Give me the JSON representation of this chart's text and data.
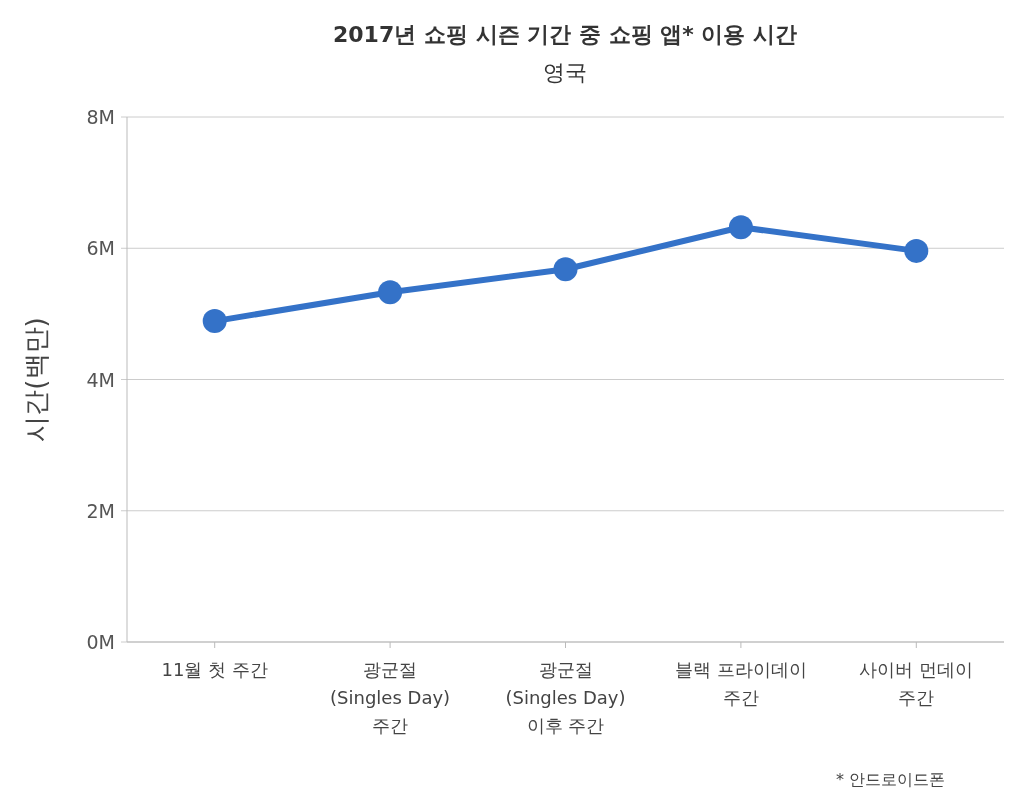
{
  "chart_data": {
    "type": "line",
    "title": "2017년 쇼핑 시즌 기간 중 쇼핑 앱* 이용 시간",
    "subtitle": "영국",
    "ylabel": "시간(백만)",
    "categories": [
      "11월 첫 주간",
      "광군절\n(Singles Day)\n주간",
      "광군절\n(Singles Day)\n이후 주간",
      "블랙 프라이데이\n주간",
      "사이버 먼데이\n주간"
    ],
    "series": [
      {
        "color": "#3472c8",
        "values": [
          4.89,
          5.33,
          5.68,
          6.32,
          5.96
        ]
      }
    ],
    "ylim": [
      0,
      8
    ],
    "yticks": [
      {
        "value": 0,
        "label": "0M"
      },
      {
        "value": 2,
        "label": "2M"
      },
      {
        "value": 4,
        "label": "4M"
      },
      {
        "value": 6,
        "label": "6M"
      },
      {
        "value": 8,
        "label": "8M"
      }
    ],
    "grid": "y",
    "marker": "circle",
    "line_style": "solid",
    "annotations": [
      "* 안드로이드폰"
    ]
  }
}
